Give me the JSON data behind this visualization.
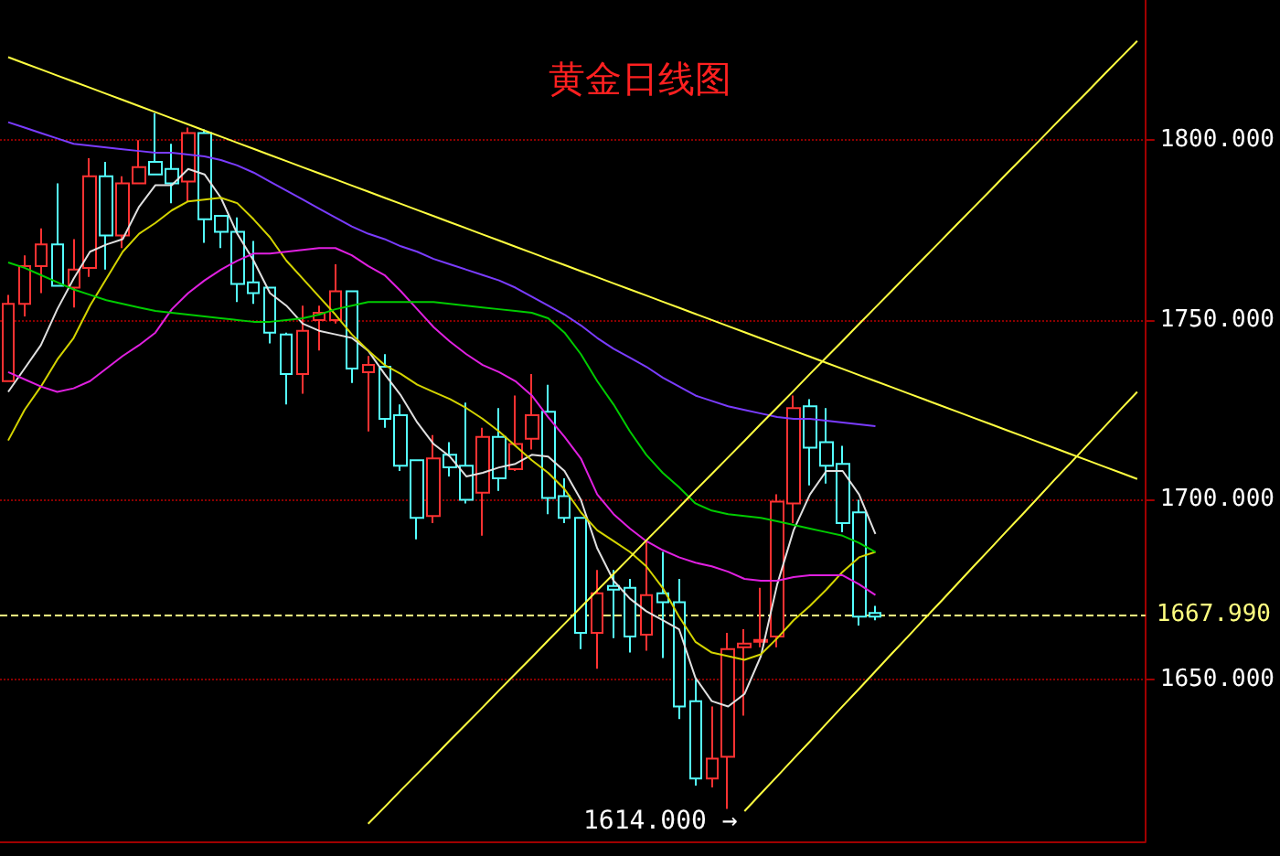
{
  "chart_data": {
    "type": "candlestick",
    "title": "黄金日线图",
    "categories": [
      null,
      null,
      null,
      null,
      null,
      null,
      null,
      null,
      null,
      null,
      null,
      null,
      null,
      null,
      null,
      null,
      null,
      null,
      null,
      null,
      null,
      null,
      null,
      null,
      null,
      null,
      null,
      null,
      null,
      null,
      null,
      null,
      null,
      null,
      null,
      null,
      null,
      null,
      null,
      null,
      null,
      null,
      null,
      null,
      null,
      null,
      null,
      null,
      null,
      null,
      null,
      null,
      null,
      null,
      null,
      null,
      null,
      null,
      null,
      null,
      null,
      null,
      null,
      null,
      null,
      null,
      null,
      null,
      null,
      null
    ],
    "colors": [
      "#ff3232",
      "#ff3232",
      "#ff3232",
      "#54ffff",
      "#ff3232",
      "#ff3232",
      "#54ffff",
      "#ff3232",
      "#ff3232",
      "#54ffff",
      "#54ffff",
      "#ff3232",
      "#54ffff",
      "#54ffff",
      "#54ffff",
      "#54ffff",
      "#54ffff",
      "#54ffff",
      "#ff3232",
      "#ff3232",
      "#ff3232",
      "#54ffff",
      "#ff3232",
      "#54ffff",
      "#54ffff",
      "#54ffff",
      "#ff3232",
      "#54ffff",
      "#54ffff",
      "#ff3232",
      "#54ffff",
      "#ff3232",
      "#ff3232",
      "#54ffff",
      "#54ffff",
      "#54ffff",
      "#ff3232",
      "#54ffff",
      "#54ffff",
      "#ff3232",
      "#54ffff",
      "#54ffff",
      "#54ffff",
      "#ff3232",
      "#ff3232",
      "#ff3232",
      "#ff3232",
      "#ff3232",
      "#ff3232",
      "#54ffff",
      "#54ffff",
      "#54ffff",
      "#54ffff",
      "#54ffff",
      null,
      null,
      null,
      null,
      null,
      null,
      null,
      null,
      null,
      null,
      null,
      null,
      null,
      null,
      null,
      null
    ],
    "ohlc": [
      [
        1733,
        1757,
        1733,
        1754.5
      ],
      [
        1754.5,
        1768,
        1751,
        1765
      ],
      [
        1765,
        1775.5,
        1757.5,
        1771
      ],
      [
        1771,
        1788,
        1759.5,
        1759.5
      ],
      [
        1759,
        1772.5,
        1753.5,
        1764
      ],
      [
        1764.5,
        1795,
        1762,
        1790
      ],
      [
        1790,
        1794,
        1764,
        1773.5
      ],
      [
        1773.5,
        1790,
        1770,
        1788
      ],
      [
        1788,
        1800,
        1788,
        1792.5
      ],
      [
        1794,
        1807.5,
        1790.5,
        1790.5
      ],
      [
        1792,
        1799,
        1782.5,
        1788
      ],
      [
        1788.5,
        1803.5,
        1783,
        1802
      ],
      [
        1802,
        1803,
        1771.5,
        1778
      ],
      [
        1779,
        1779,
        1770,
        1774.5
      ],
      [
        1774.5,
        1778.5,
        1755,
        1760
      ],
      [
        1760.5,
        1772,
        1754.5,
        1757.5
      ],
      [
        1759,
        1759,
        1743.5,
        1746.5
      ],
      [
        1746,
        1746.5,
        1726.5,
        1735
      ],
      [
        1735,
        1754,
        1729.5,
        1747
      ],
      [
        1750,
        1754,
        1741.5,
        1752
      ],
      [
        1750,
        1765.5,
        1749,
        1758
      ],
      [
        1758,
        1758,
        1732.5,
        1736.5
      ],
      [
        1735.5,
        1740,
        1719,
        1737.5
      ],
      [
        1737,
        1740.5,
        1720,
        1722.5
      ],
      [
        1723.5,
        1726.5,
        1708,
        1709.5
      ],
      [
        1711,
        1711,
        1689,
        1695
      ],
      [
        1695.5,
        1718,
        1693.5,
        1711.5
      ],
      [
        1712.5,
        1716,
        1706.5,
        1709
      ],
      [
        1709.5,
        1727,
        1699,
        1700
      ],
      [
        1702,
        1720,
        1690,
        1717.5
      ],
      [
        1717.5,
        1725.5,
        1702.5,
        1706
      ],
      [
        1708.5,
        1729,
        1708,
        1715.5
      ],
      [
        1717,
        1735,
        1714,
        1723.5
      ],
      [
        1724.5,
        1732,
        1696,
        1700.5
      ],
      [
        1701,
        1706,
        1693.5,
        1695
      ],
      [
        1695,
        1695,
        1658.5,
        1663
      ],
      [
        1663,
        1680.5,
        1653,
        1674
      ],
      [
        1676,
        1680.5,
        1661.5,
        1675
      ],
      [
        1675.5,
        1678,
        1657.5,
        1662
      ],
      [
        1662.5,
        1688.5,
        1658,
        1673.5
      ],
      [
        1674,
        1685.5,
        1656,
        1671.5
      ],
      [
        1671.5,
        1678,
        1639,
        1642.5
      ],
      [
        1644,
        1650,
        1620.5,
        1622.5
      ],
      [
        1622.5,
        1642.5,
        1620,
        1628
      ],
      [
        1628.5,
        1663,
        1614,
        1658.5
      ],
      [
        1659,
        1664,
        1640,
        1660
      ],
      [
        1660.5,
        1675.5,
        1659,
        1661
      ],
      [
        1662,
        1701.5,
        1659,
        1699.5
      ],
      [
        1699,
        1729,
        1693.5,
        1725.5
      ],
      [
        1726,
        1728,
        1704,
        1714.5
      ],
      [
        1716,
        1725.5,
        1704.5,
        1709.5
      ],
      [
        1710,
        1715,
        1691,
        1693.5
      ],
      [
        1696.5,
        1700,
        1665,
        1667.5
      ],
      [
        1668.5,
        1670.5,
        1666.5,
        1667.5
      ],
      null,
      null,
      null,
      null,
      null,
      null,
      null,
      null,
      null,
      null,
      null,
      null,
      null,
      null,
      null,
      null
    ],
    "series": [
      {
        "type": "line",
        "color": "#e0e0e0",
        "values": [
          1730,
          1736.5,
          1743,
          1753,
          1761.5,
          1769,
          1771,
          1772.5,
          1781.5,
          1787.5,
          1787.5,
          1792,
          1790.5,
          1784,
          1774,
          1766.5,
          1757.5,
          1754,
          1749,
          1747,
          1746,
          1745,
          1741.5,
          1735,
          1729,
          1721.5,
          1715.5,
          1712,
          1706.5,
          1707.5,
          1709,
          1710,
          1712.5,
          1712,
          1708,
          1700,
          1686.5,
          1677.5,
          1672.5,
          1669,
          1666.5,
          1664,
          1650.5,
          1644,
          1642.5,
          1646,
          1656.5,
          1676.5,
          1691.5,
          1701.5,
          1708,
          1708,
          1701.5,
          1690.5,
          null,
          null,
          null,
          null,
          null,
          null,
          null,
          null,
          null,
          null,
          null,
          null,
          null,
          null,
          null,
          null
        ]
      },
      {
        "type": "line",
        "color": "#d4d400",
        "values": [
          1716.5,
          1725,
          1731.5,
          1739,
          1745,
          1754,
          1761.5,
          1769,
          1774,
          1777,
          1780.5,
          1783,
          1783.5,
          1784,
          1782.5,
          1778,
          1773,
          1766.5,
          1761.5,
          1756.5,
          1751.5,
          1746,
          1741.5,
          1737.5,
          1735,
          1732,
          1730,
          1728,
          1725.5,
          1722.5,
          1719,
          1715,
          1711,
          1707.5,
          1703,
          1696.5,
          1691.5,
          1688.5,
          1685.5,
          1681.5,
          1675.5,
          1667.5,
          1660.5,
          1657.5,
          1656.5,
          1655.5,
          1657,
          1661.5,
          1666.5,
          1670.5,
          1675,
          1680,
          1684,
          1685.5,
          null,
          null,
          null,
          null,
          null,
          null,
          null,
          null,
          null,
          null,
          null,
          null,
          null,
          null,
          null,
          null
        ]
      },
      {
        "type": "line",
        "color": "#e020e0",
        "values": [
          1735.5,
          1733.5,
          1731.5,
          1730,
          1731,
          1733,
          1736.5,
          1740,
          1743,
          1746.5,
          1753,
          1757.5,
          1761,
          1764,
          1766.5,
          1768.5,
          1768.5,
          1769,
          1769.5,
          1770,
          1770,
          1768,
          1765,
          1762.5,
          1758,
          1753,
          1748,
          1744,
          1740.5,
          1737.5,
          1735.5,
          1733,
          1729,
          1723,
          1717.5,
          1711.5,
          1701.5,
          1696,
          1692,
          1688.5,
          1686,
          1684,
          1682.5,
          1681.5,
          1680,
          1678,
          1677.5,
          1677.5,
          1678.5,
          1679,
          1679,
          1679,
          1676.5,
          1673.5,
          null,
          null,
          null,
          null,
          null,
          null,
          null,
          null,
          null,
          null,
          null,
          null,
          null,
          null,
          null,
          null
        ]
      },
      {
        "type": "line",
        "color": "#00cc00",
        "values": [
          1766,
          1764.5,
          1762.5,
          1760.5,
          1758.5,
          1757,
          1755.5,
          1754.5,
          1753.5,
          1752.5,
          1752,
          1751.5,
          1751,
          1750.5,
          1750,
          1749.5,
          1749.5,
          1750,
          1750.5,
          1751.5,
          1753,
          1754,
          1755,
          1755,
          1755,
          1755,
          1755,
          1754.5,
          1754,
          1753.5,
          1753,
          1752.5,
          1752,
          1750.5,
          1746.5,
          1740.5,
          1733,
          1726.5,
          1719,
          1712.5,
          1707.5,
          1703.5,
          1699,
          1697,
          1696,
          1695.5,
          1695,
          1694,
          1693,
          1692,
          1691,
          1690,
          1688,
          1685.5,
          null,
          null,
          null,
          null,
          null,
          null,
          null,
          null,
          null,
          null,
          null,
          null,
          null,
          null,
          null,
          null
        ]
      },
      {
        "type": "line",
        "color": "#7a3cff",
        "values": [
          1805,
          1803.5,
          1802,
          1800.5,
          1799,
          1798.5,
          1798,
          1797.5,
          1797,
          1796.5,
          1796.5,
          1796,
          1795.5,
          1794.5,
          1793,
          1791,
          1788.5,
          1786,
          1783.5,
          1781,
          1778.5,
          1776,
          1774,
          1772.5,
          1770.5,
          1769,
          1767,
          1765.5,
          1764,
          1762.5,
          1761,
          1759,
          1756.5,
          1754,
          1751.5,
          1748.5,
          1745,
          1742,
          1739.5,
          1737,
          1734,
          1731.5,
          1729,
          1727.5,
          1726,
          1725,
          1724,
          1723,
          1722.5,
          1722.5,
          1722,
          1721.5,
          1721,
          1720.5,
          null,
          null,
          null,
          null,
          null,
          null,
          null,
          null,
          null,
          null,
          null,
          null,
          null,
          null,
          null,
          null
        ]
      },
      {
        "type": "line",
        "color": "#ffff40",
        "values": [
          1823.1,
          1821.4,
          1819.7,
          1818.0,
          1816.3,
          1814.6,
          1812.9,
          1811.2,
          1809.5,
          1807.8,
          1806.1,
          1804.4,
          1802.7,
          1801.0,
          1799.3,
          1797.6,
          1795.9,
          1794.2,
          1792.5,
          1790.8,
          1789.1,
          1787.4,
          1785.7,
          1784.0,
          1782.3,
          1780.6,
          1778.9,
          1777.2,
          1775.5,
          1773.8,
          1772.1,
          1770.4,
          1768.7,
          1767.0,
          1765.3,
          1763.6,
          1761.9,
          1760.2,
          1758.5,
          1756.8,
          1755.1,
          1753.4,
          1751.7,
          1750.0,
          1748.3,
          1746.6,
          1744.9,
          1743.2,
          1741.5,
          1739.8,
          1738.1,
          1736.4,
          1734.7,
          1733.0,
          1731.3,
          1729.6,
          1727.9,
          1726.2,
          1724.5,
          1722.8,
          1721.1,
          1719.4,
          1717.7,
          1716.0,
          1714.3,
          1712.6,
          1710.9,
          1709.2,
          1707.5,
          1705.8
        ]
      },
      {
        "type": "line",
        "color": "#ffff40",
        "values": [
          null,
          null,
          null,
          null,
          null,
          null,
          null,
          null,
          null,
          null,
          null,
          null,
          null,
          null,
          null,
          null,
          null,
          null,
          null,
          null,
          null,
          null,
          1609.9,
          1614.5,
          1619.2,
          1623.8,
          1628.4,
          1633.1,
          1637.7,
          1642.3,
          1647.0,
          1651.6,
          1656.2,
          1660.9,
          1665.5,
          1670.1,
          1674.8,
          1679.4,
          1684.0,
          1688.7,
          1693.3,
          1697.9,
          1702.6,
          1707.2,
          1711.8,
          1716.4,
          1721.1,
          1725.7,
          1730.3,
          1735.0,
          1739.6,
          1744.2,
          1748.9,
          1753.5,
          1758.1,
          1762.8,
          1767.4,
          1772.0,
          1776.7,
          1781.3,
          1785.9,
          1790.6,
          1795.2,
          1799.8,
          1804.5,
          1809.1,
          1813.7,
          1818.4,
          1823.0,
          1827.6
        ]
      },
      {
        "type": "line",
        "color": "#ffff40",
        "values": [
          null,
          null,
          null,
          null,
          null,
          null,
          null,
          null,
          null,
          null,
          null,
          null,
          null,
          null,
          null,
          null,
          null,
          null,
          null,
          null,
          null,
          null,
          null,
          null,
          null,
          null,
          null,
          null,
          null,
          null,
          null,
          null,
          null,
          null,
          null,
          null,
          null,
          null,
          null,
          null,
          null,
          null,
          null,
          null,
          null,
          1613.4,
          1618.3,
          1623.1,
          1628.0,
          1632.8,
          1637.7,
          1642.6,
          1647.4,
          1652.3,
          1657.2,
          1662.0,
          1666.9,
          1671.7,
          1676.6,
          1681.5,
          1686.3,
          1691.2,
          1696.0,
          1700.9,
          1705.8,
          1710.6,
          1715.5,
          1720.3,
          1725.2,
          1730.0
        ]
      }
    ],
    "ylim": [
      1605,
      1839
    ],
    "yticks": [
      {
        "value": 1650,
        "label": "1650.000"
      },
      {
        "value": 1700,
        "label": "1700.000"
      },
      {
        "value": 1750,
        "label": "1750.000"
      },
      {
        "value": 1800,
        "label": "1800.000"
      }
    ],
    "ref_lines": [
      {
        "axis": "y",
        "value": 1667.99,
        "label": "1667.990",
        "color": "#ffff80",
        "line_style": "dashed"
      }
    ],
    "annotations": [
      "1614.000 →"
    ],
    "grid": "y"
  }
}
